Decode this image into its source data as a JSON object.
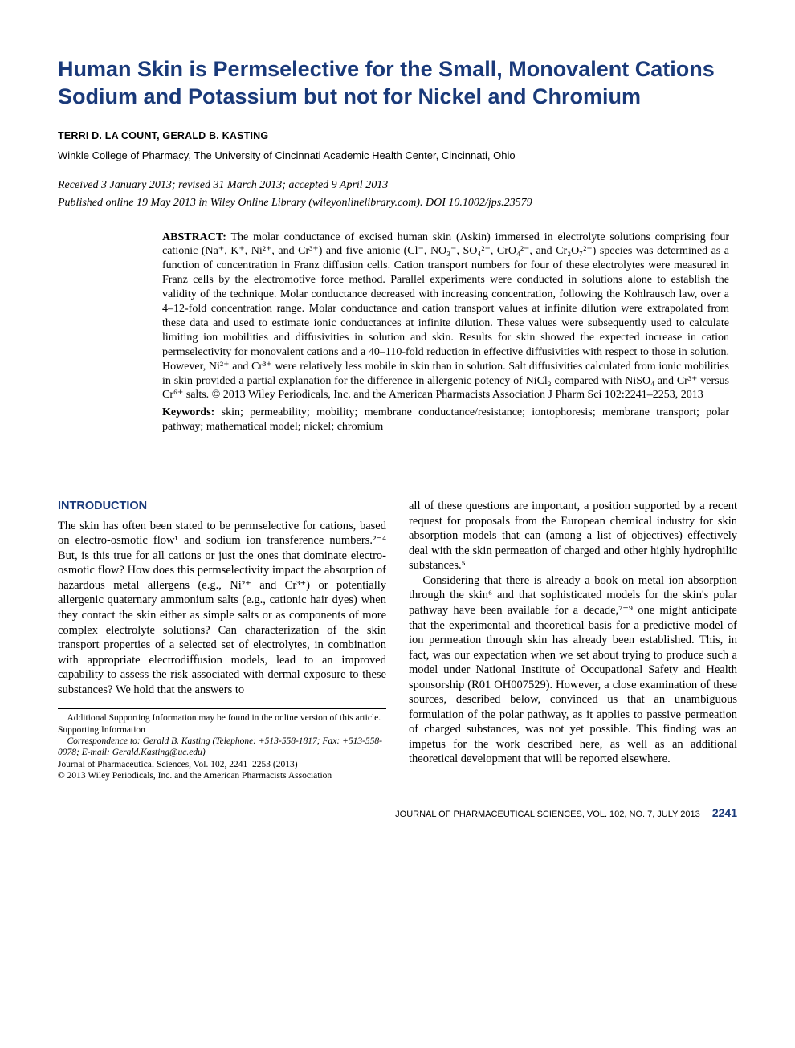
{
  "colors": {
    "accent": "#1a3a7a",
    "text": "#000000",
    "background": "#ffffff",
    "rule": "#000000"
  },
  "typography": {
    "title_font": "Helvetica",
    "title_size_pt": 20,
    "title_weight": "700",
    "body_font": "Times New Roman (Century-style serif)",
    "body_size_pt": 10.5,
    "heading_size_pt": 11,
    "footnote_size_pt": 8.5
  },
  "header": {
    "title": "Human Skin is Permselective for the Small, Monovalent Cations Sodium and Potassium but not for Nickel and Chromium",
    "authors": "TERRI D. LA COUNT, GERALD B. KASTING",
    "affiliation": "Winkle College of Pharmacy, The University of Cincinnati Academic Health Center, Cincinnati, Ohio",
    "received_line": "Received 3 January 2013; revised 31 March 2013; accepted 9 April 2013",
    "published_line": "Published online 19 May 2013 in Wiley Online Library (wileyonlinelibrary.com). DOI 10.1002/jps.23579"
  },
  "abstract": {
    "label": "ABSTRACT:",
    "text": "The molar conductance of excised human skin (Λskin) immersed in electrolyte solutions comprising four cationic (Na⁺, K⁺, Ni²⁺, and Cr³⁺) and five anionic (Cl⁻, NO₃⁻, SO₄²⁻, CrO₄²⁻, and Cr₂O₇²⁻) species was determined as a function of concentration in Franz diffusion cells. Cation transport numbers for four of these electrolytes were measured in Franz cells by the electromotive force method. Parallel experiments were conducted in solutions alone to establish the validity of the technique. Molar conductance decreased with increasing concentration, following the Kohlrausch law, over a 4–12-fold concentration range. Molar conductance and cation transport values at infinite dilution were extrapolated from these data and used to estimate ionic conductances at infinite dilution. These values were subsequently used to calculate limiting ion mobilities and diffusivities in solution and skin. Results for skin showed the expected increase in cation permselectivity for monovalent cations and a 40–110-fold reduction in effective diffusivities with respect to those in solution. However, Ni²⁺ and Cr³⁺ were relatively less mobile in skin than in solution. Salt diffusivities calculated from ionic mobilities in skin provided a partial explanation for the difference in allergenic potency of NiCl₂ compared with NiSO₄ and Cr³⁺ versus Cr⁶⁺ salts. © 2013 Wiley Periodicals, Inc. and the American Pharmacists Association J Pharm Sci 102:2241–2253, 2013",
    "keywords_label": "Keywords:",
    "keywords": "skin; permeability; mobility; membrane conductance/resistance; iontophoresis; membrane transport; polar pathway; mathematical model; nickel; chromium"
  },
  "body": {
    "intro_heading": "INTRODUCTION",
    "para1": "The skin has often been stated to be permselective for cations, based on electro-osmotic flow¹ and sodium ion transference numbers.²⁻⁴ But, is this true for all cations or just the ones that dominate electro-osmotic flow? How does this permselectivity impact the absorption of hazardous metal allergens (e.g., Ni²⁺ and Cr³⁺) or potentially allergenic quaternary ammonium salts (e.g., cationic hair dyes) when they contact the skin either as simple salts or as components of more complex electrolyte solutions? Can characterization of the skin transport properties of a selected set of electrolytes, in combination with appropriate electrodiffusion models, lead to an improved capability to assess the risk associated with dermal exposure to these substances? We hold that the answers to",
    "para1b": "all of these questions are important, a position supported by a recent request for proposals from the European chemical industry for skin absorption models that can (among a list of objectives) effectively deal with the skin permeation of charged and other highly hydrophilic substances.⁵",
    "para2": "Considering that there is already a book on metal ion absorption through the skin⁶ and that sophisticated models for the skin's polar pathway have been available for a decade,⁷⁻⁹ one might anticipate that the experimental and theoretical basis for a predictive model of ion permeation through skin has already been established. This, in fact, was our expectation when we set about trying to produce such a model under National Institute of Occupational Safety and Health sponsorship (R01 OH007529). However, a close examination of these sources, described below, convinced us that an unambiguous formulation of the polar pathway, as it applies to passive permeation of charged substances, was not yet possible. This finding was an impetus for the work described here, as well as an additional theoretical development that will be reported elsewhere."
  },
  "footnotes": {
    "supporting": "Additional Supporting Information may be found in the online version of this article. Supporting Information",
    "correspondence": "Correspondence to: Gerald B. Kasting (Telephone: +513-558-1817; Fax: +513-558-0978; E-mail: Gerald.Kasting@uc.edu)",
    "journal": "Journal of Pharmaceutical Sciences, Vol. 102, 2241–2253 (2013)",
    "copyright": "© 2013 Wiley Periodicals, Inc. and the American Pharmacists Association"
  },
  "footer": {
    "running": "JOURNAL OF PHARMACEUTICAL SCIENCES, VOL. 102, NO. 7, JULY 2013",
    "page": "2241"
  }
}
